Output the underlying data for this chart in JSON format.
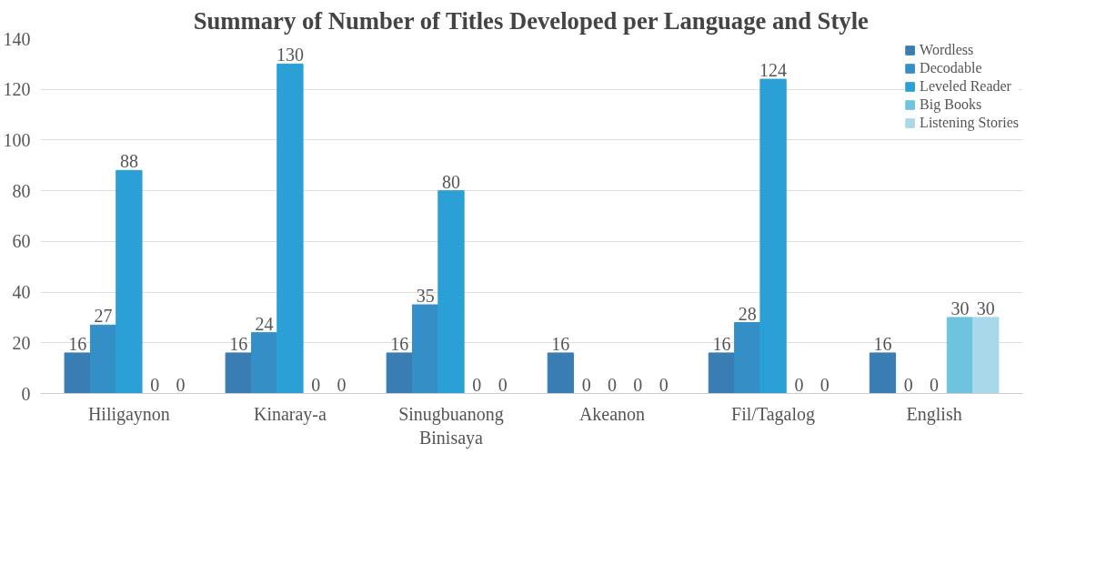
{
  "chart_data": {
    "type": "bar",
    "title": "Summary of Number of Titles Developed per Language and Style",
    "categories": [
      "Hiligaynon",
      "Kinaray-a",
      "Sinugbuanong Binisaya",
      "Akeanon",
      "Fil/Tagalog",
      "English"
    ],
    "series": [
      {
        "name": "Wordless",
        "color": "#3a7db3",
        "values": [
          16,
          16,
          16,
          16,
          16,
          16
        ]
      },
      {
        "name": "Decodable",
        "color": "#348fc6",
        "values": [
          27,
          24,
          35,
          0,
          28,
          0
        ]
      },
      {
        "name": "Leveled Reader",
        "color": "#2aa0d6",
        "values": [
          88,
          130,
          80,
          0,
          124,
          0
        ]
      },
      {
        "name": "Big Books",
        "color": "#6ec3df",
        "values": [
          0,
          0,
          0,
          0,
          0,
          30
        ]
      },
      {
        "name": "Listening Stories",
        "color": "#a9d8e8",
        "values": [
          0,
          0,
          0,
          0,
          0,
          30
        ]
      }
    ],
    "ylim": [
      0,
      140
    ],
    "yticks": [
      0,
      20,
      40,
      60,
      80,
      100,
      120,
      140
    ],
    "grid": "y",
    "legend": "top right",
    "data_labels": true
  }
}
